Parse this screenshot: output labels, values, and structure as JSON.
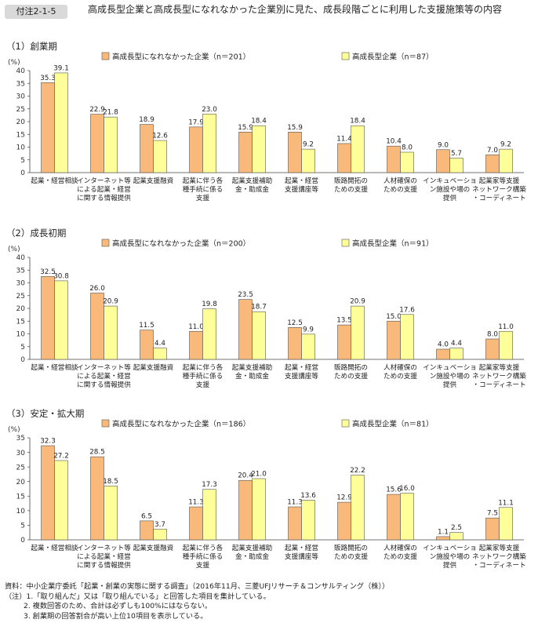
{
  "figure": {
    "tag": "付注2-1-5",
    "title": "高成長型企業と高成長型になれなかった企業別に見た、成長段階ごとに利用した支援施策等の内容"
  },
  "colors": {
    "non_high_growth": "#f9b97a",
    "high_growth": "#ffff99",
    "stroke": "#555555"
  },
  "chart_data": [
    {
      "type": "bar",
      "title": "（1）創業期",
      "ylabel": "(%)",
      "ylim": [
        0,
        40
      ],
      "yticks": [
        0,
        5,
        10,
        15,
        20,
        25,
        30,
        35,
        40
      ],
      "categories": [
        [
          "起業・経営相談"
        ],
        [
          "インターネット等",
          "による起業・経営",
          "に関する情報提供"
        ],
        [
          "起業支援融資"
        ],
        [
          "起業に伴う各",
          "種手続に係る",
          "支援"
        ],
        [
          "起業支援補助",
          "金・助成金"
        ],
        [
          "起業・経営",
          "支援講座等"
        ],
        [
          "販路開拓の",
          "ための支援"
        ],
        [
          "人材確保の",
          "ための支援"
        ],
        [
          "インキュベーショ",
          "ン施設や場の",
          "提供"
        ],
        [
          "起業家等支援",
          "ネットワーク構築",
          "・コーディネート"
        ]
      ],
      "series": [
        {
          "name": "高成長型になれなかった企業（n＝201）",
          "values": [
            35.3,
            22.9,
            18.9,
            17.9,
            15.9,
            15.9,
            11.4,
            10.4,
            9.0,
            7.0
          ]
        },
        {
          "name": "高成長型企業（n＝87）",
          "values": [
            39.1,
            21.8,
            12.6,
            23.0,
            18.4,
            9.2,
            18.4,
            8.0,
            5.7,
            9.2
          ]
        }
      ]
    },
    {
      "type": "bar",
      "title": "（2）成長初期",
      "ylabel": "(%)",
      "ylim": [
        0,
        40
      ],
      "yticks": [
        0,
        5,
        10,
        15,
        20,
        25,
        30,
        35,
        40
      ],
      "categories": [
        [
          "起業・経営相談"
        ],
        [
          "インターネット等",
          "による起業・経営",
          "に関する情報提供"
        ],
        [
          "起業支援融資"
        ],
        [
          "起業に伴う各",
          "種手続に係る",
          "支援"
        ],
        [
          "起業支援補助",
          "金・助成金"
        ],
        [
          "起業・経営",
          "支援講座等"
        ],
        [
          "販路開拓の",
          "ための支援"
        ],
        [
          "人材確保の",
          "ための支援"
        ],
        [
          "インキュベーショ",
          "ン施設や場の",
          "提供"
        ],
        [
          "起業家等支援",
          "ネットワーク構築",
          "・コーディネート"
        ]
      ],
      "series": [
        {
          "name": "高成長型になれなかった企業（n＝200）",
          "values": [
            32.5,
            26.0,
            11.5,
            11.0,
            23.5,
            12.5,
            13.5,
            15.0,
            4.0,
            8.0
          ]
        },
        {
          "name": "高成長型企業（n＝91）",
          "values": [
            30.8,
            20.9,
            4.4,
            19.8,
            18.7,
            9.9,
            20.9,
            17.6,
            4.4,
            11.0
          ]
        }
      ]
    },
    {
      "type": "bar",
      "title": "（3）安定・拡大期",
      "ylabel": "(%)",
      "ylim": [
        0,
        35
      ],
      "yticks": [
        0,
        5,
        10,
        15,
        20,
        25,
        30,
        35
      ],
      "categories": [
        [
          "起業・経営相談"
        ],
        [
          "インターネット等",
          "による起業・経営",
          "に関する情報提供"
        ],
        [
          "起業支援融資"
        ],
        [
          "起業に伴う各",
          "種手続に係る",
          "支援"
        ],
        [
          "起業支援補助",
          "金・助成金"
        ],
        [
          "起業・経営",
          "支援講座等"
        ],
        [
          "販路開拓の",
          "ための支援"
        ],
        [
          "人材確保の",
          "ための支援"
        ],
        [
          "インキュベーショ",
          "ン施設や場の",
          "提供"
        ],
        [
          "起業家等支援",
          "ネットワーク構築",
          "・コーディネート"
        ]
      ],
      "series": [
        {
          "name": "高成長型になれなかった企業（n＝186）",
          "values": [
            32.3,
            28.5,
            6.5,
            11.3,
            20.4,
            11.3,
            12.9,
            15.6,
            1.1,
            7.5
          ]
        },
        {
          "name": "高成長型企業（n＝81）",
          "values": [
            27.2,
            18.5,
            3.7,
            17.3,
            21.0,
            13.6,
            22.2,
            16.0,
            2.5,
            11.1
          ]
        }
      ]
    }
  ],
  "notes": {
    "source": "資料：中小企業庁委託「起業・創業の実態に関する調査」（2016年11月、三菱UFJリサーチ＆コンサルティング（株））",
    "note1": "（注）1.「取り組んだ」又は「取り組んでいる」と回答した項目を集計している。",
    "note2": "2. 複数回答のため、合計は必ずしも100%にはならない。",
    "note3": "3. 創業期の回答割合が高い上位10項目を表示している。"
  }
}
